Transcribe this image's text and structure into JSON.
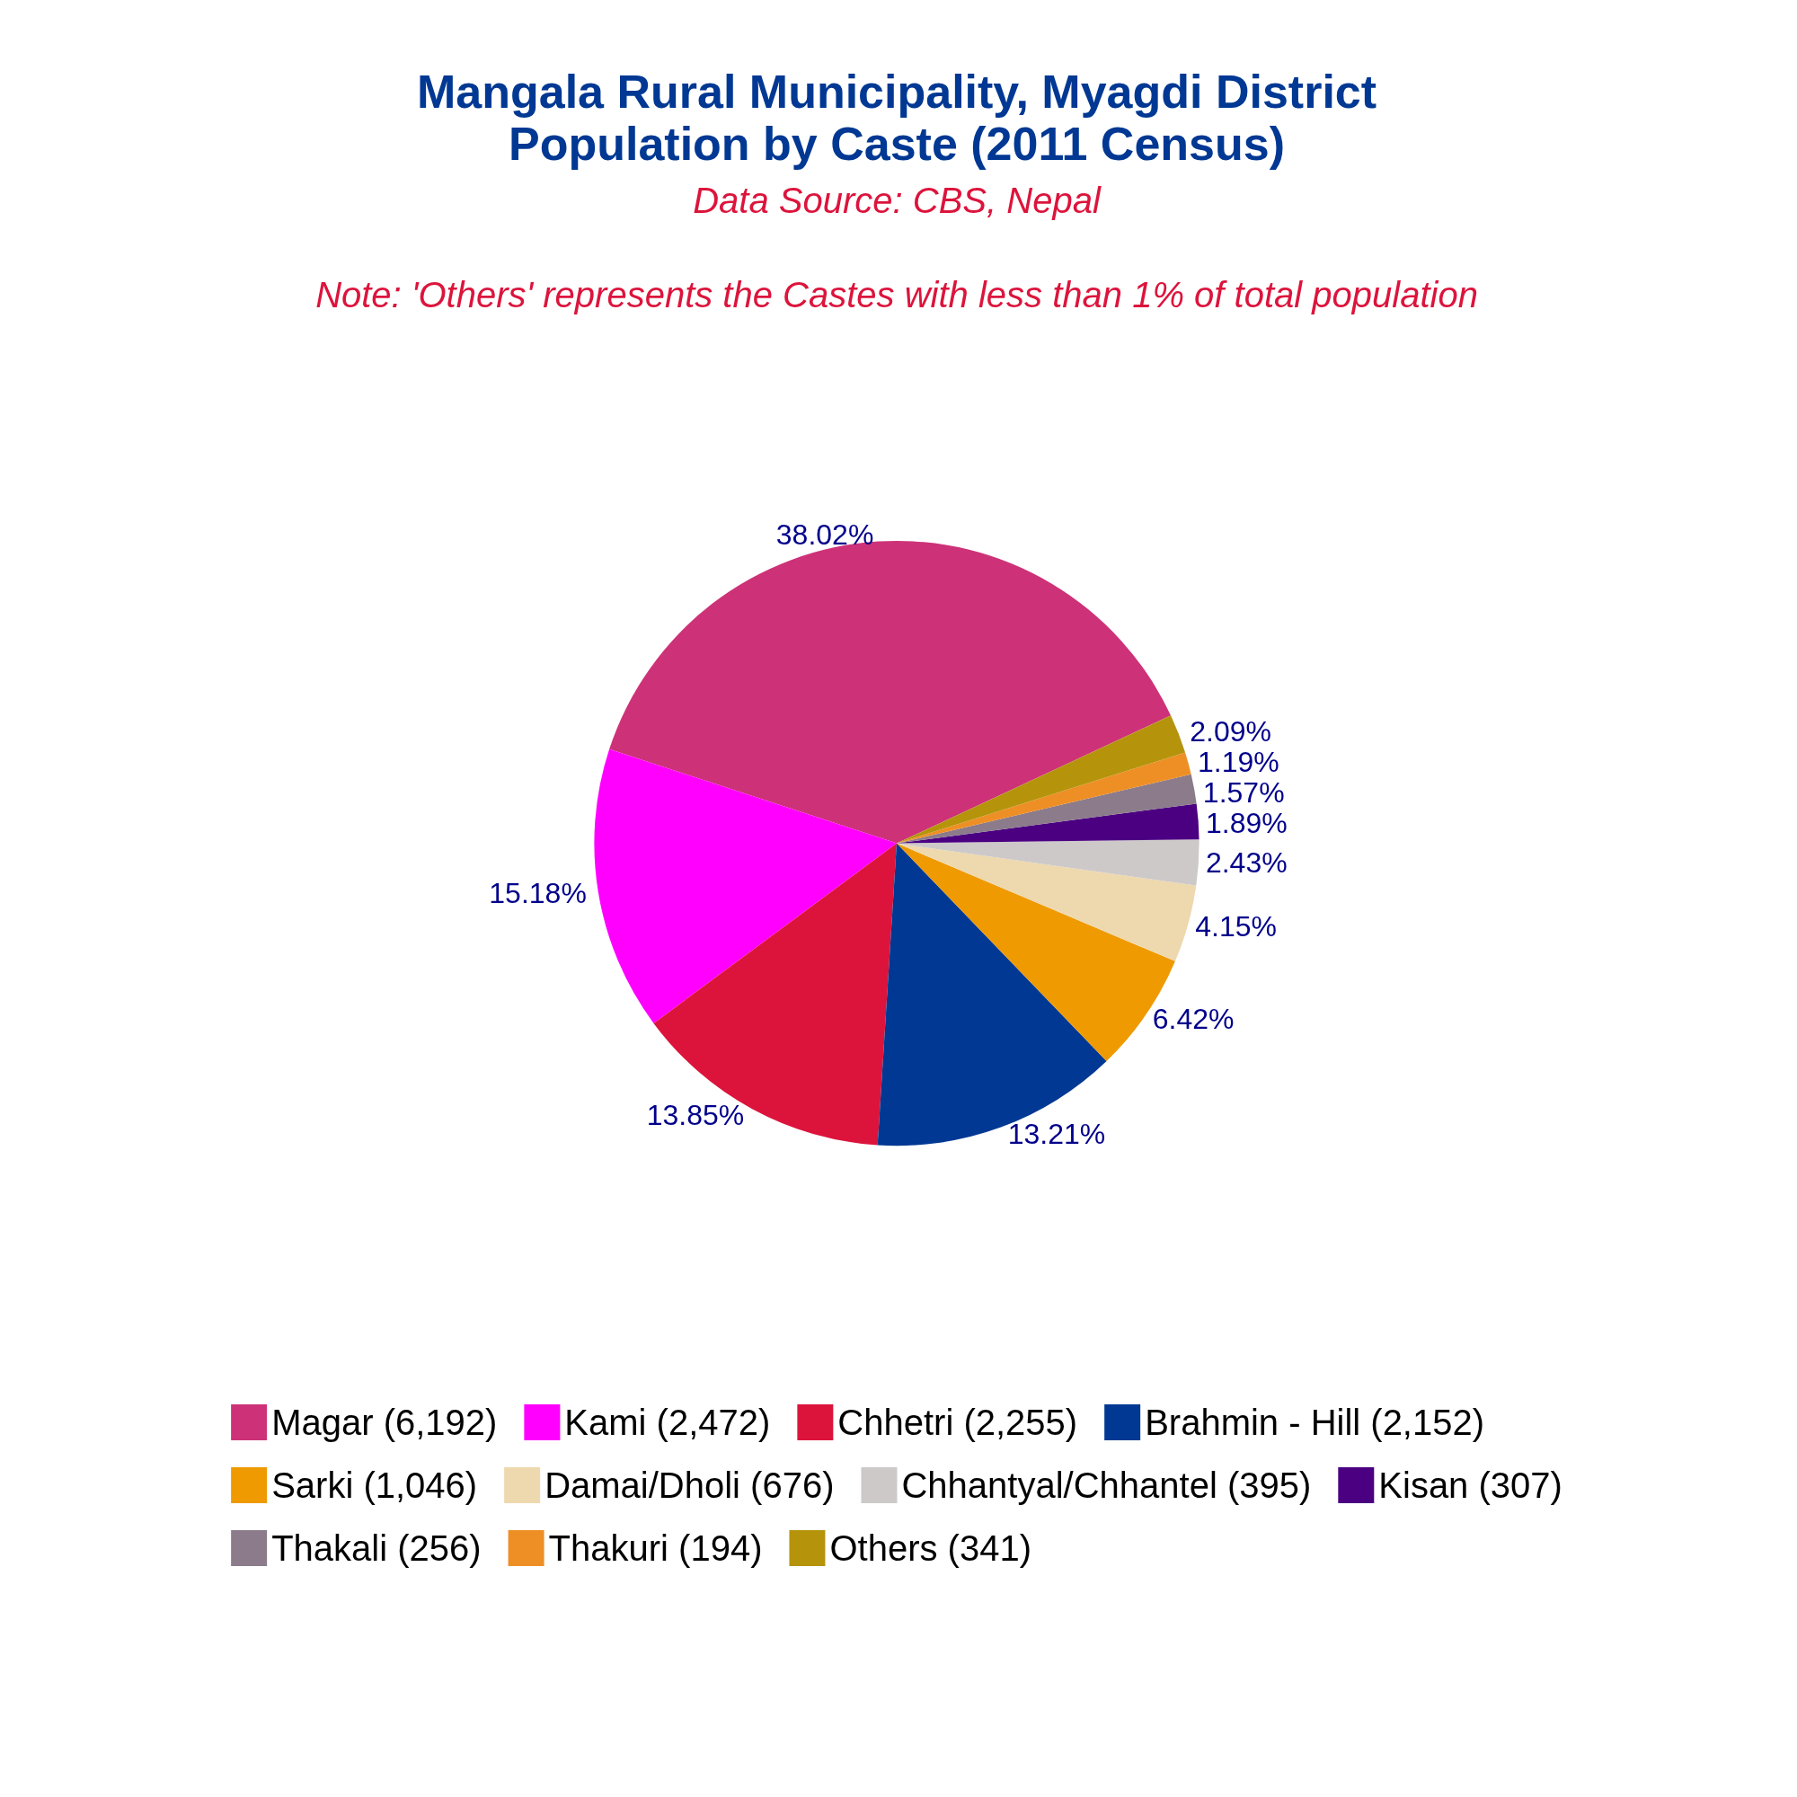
{
  "chart_data": {
    "type": "pie",
    "title": "Mangala Rural Municipality, Myagdi District\nPopulation by Caste (2011 Census)",
    "subtitle": "Data Source: CBS, Nepal",
    "annotations": [
      "Note: 'Others' represents the Castes with less than 1% of total population"
    ],
    "categories": [
      "Magar (6,192)",
      "Kami (2,472)",
      "Chhetri (2,255)",
      "Brahmin - Hill (2,152)",
      "Sarki (1,046)",
      "Damai/Dholi (676)",
      "Chhantyal/Chhantel (395)",
      "Kisan (307)",
      "Thakali (256)",
      "Thakuri (194)",
      "Others (341)"
    ],
    "values": [
      38.02,
      15.18,
      13.85,
      13.21,
      6.42,
      4.15,
      2.43,
      1.89,
      1.57,
      1.19,
      2.09
    ],
    "value_labels": [
      "38.02%",
      "15.18%",
      "13.85%",
      "13.21%",
      "6.42%",
      "4.15%",
      "2.43%",
      "1.89%",
      "1.57%",
      "1.19%",
      "2.09%"
    ],
    "colors": [
      "#cd3278",
      "#ff00ff",
      "#dc143c",
      "#003893",
      "#ee9a00",
      "#eed8ae",
      "#cdc9c9",
      "#4b0082",
      "#8b7b8b",
      "#ee8f25",
      "#b5940c"
    ],
    "legend": "bottom"
  }
}
